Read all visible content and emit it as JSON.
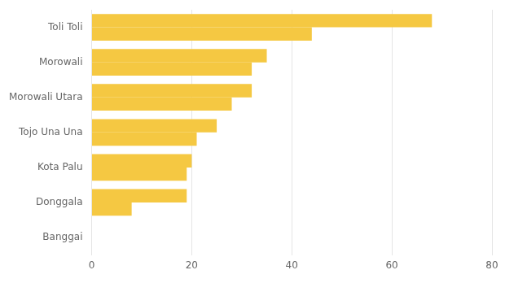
{
  "chart_data": {
    "type": "bar",
    "orientation": "horizontal",
    "categories": [
      "Banggai",
      "Donggala",
      "Kota Palu",
      "Tojo Una Una",
      "Morowali Utara",
      "Morowali",
      "Toli Toli"
    ],
    "series": [
      {
        "color": "#F5C842",
        "values": [
          0.0,
          19.0,
          20.0,
          25.0,
          32.0,
          35.0,
          68.0
        ]
      },
      {
        "color": "#F5C842",
        "values": [
          0.0,
          8.0,
          19.0,
          21.0,
          28.0,
          32.0,
          44.0
        ]
      }
    ],
    "xlim": [
      0,
      80
    ],
    "xticks": [
      0,
      20,
      40,
      60,
      80
    ],
    "grid": true
  }
}
